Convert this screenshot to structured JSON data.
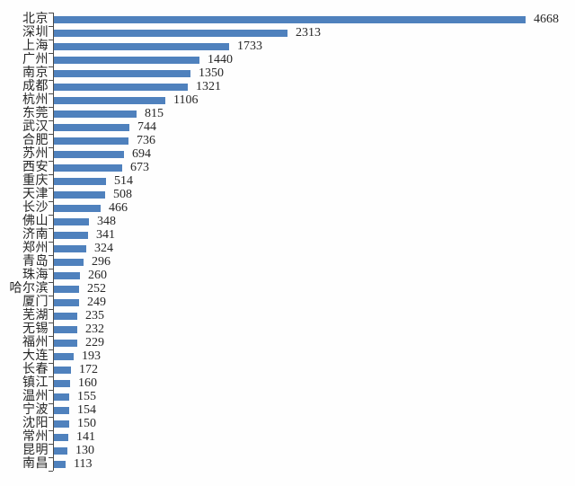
{
  "chart_data": {
    "type": "bar",
    "orientation": "horizontal",
    "title": "",
    "xlabel": "",
    "ylabel": "",
    "categories": [
      "北京",
      "深圳",
      "上海",
      "广州",
      "南京",
      "成都",
      "杭州",
      "东莞",
      "武汉",
      "合肥",
      "苏州",
      "西安",
      "重庆",
      "天津",
      "长沙",
      "佛山",
      "济南",
      "郑州",
      "青岛",
      "珠海",
      "哈尔滨",
      "厦门",
      "芜湖",
      "无锡",
      "福州",
      "大连",
      "长春",
      "镇江",
      "温州",
      "宁波",
      "沈阳",
      "常州",
      "昆明",
      "南昌"
    ],
    "values": [
      4668,
      2313,
      1733,
      1440,
      1350,
      1321,
      1106,
      815,
      744,
      736,
      694,
      673,
      514,
      508,
      466,
      348,
      341,
      324,
      296,
      260,
      252,
      249,
      235,
      232,
      229,
      193,
      172,
      160,
      155,
      154,
      150,
      141,
      130,
      113
    ],
    "value_labels_shown": true,
    "xlim": [
      0,
      4668
    ],
    "grid": false,
    "legend": null,
    "colors": {
      "bar": "#4f81bd",
      "axis": "#4a4a4a",
      "text": "#262626",
      "background": "#fefefe"
    }
  }
}
